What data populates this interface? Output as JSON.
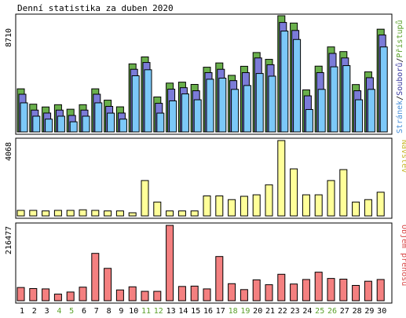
{
  "title": "Denní statistika za duben 2020",
  "panels": {
    "top": {
      "max_label": "8710",
      "legend": [
        {
          "text": "Stránek",
          "color": "#4a90d9"
        },
        {
          "text": "/",
          "color": "#000000"
        },
        {
          "text": "Souborů",
          "color": "#3a3aa0"
        },
        {
          "text": "/",
          "color": "#000000"
        },
        {
          "text": "Přístupů",
          "color": "#5aa02a"
        }
      ]
    },
    "middle": {
      "max_label": "4068",
      "legend_text": "Návštěv",
      "legend_color": "#c8b830"
    },
    "bottom": {
      "max_label": "216477",
      "legend_text": "Objem přenosu",
      "legend_color": "#d84848"
    }
  },
  "colors": {
    "hits": "#6ab04c",
    "files": "#7b7bd8",
    "pages": "#7cc8f8",
    "visits": "#ffff99",
    "kbytes": "#f48080",
    "weekend_label": "#5aa02a",
    "weekday_label": "#000000"
  },
  "chart_data": {
    "type": "bar",
    "categories": [
      "1",
      "2",
      "3",
      "4",
      "5",
      "6",
      "7",
      "8",
      "9",
      "10",
      "11",
      "12",
      "13",
      "14",
      "15",
      "16",
      "17",
      "18",
      "19",
      "20",
      "21",
      "22",
      "23",
      "24",
      "25",
      "26",
      "27",
      "28",
      "29",
      "30"
    ],
    "weekend_days": [
      "4",
      "5",
      "11",
      "12",
      "18",
      "19",
      "25",
      "26"
    ],
    "series": [
      {
        "name": "Přístupů",
        "values": [
          3230,
          2080,
          1870,
          2040,
          1700,
          2040,
          3230,
          2380,
          1880,
          5100,
          5620,
          2620,
          3660,
          3730,
          3560,
          4850,
          5170,
          4240,
          4920,
          5950,
          5440,
          8710,
          8160,
          3150,
          4930,
          6370,
          6020,
          3550,
          4500,
          7700
        ]
      },
      {
        "name": "Souborů",
        "values": [
          3060,
          1870,
          1650,
          1870,
          1470,
          1870,
          3060,
          2150,
          1650,
          4930,
          5440,
          2380,
          3440,
          3550,
          3320,
          4680,
          4930,
          4080,
          4680,
          5780,
          5270,
          8440,
          7840,
          2940,
          4680,
          6120,
          5780,
          3320,
          4300,
          7500
        ]
      },
      {
        "name": "Stránek",
        "values": [
          2650,
          1650,
          1430,
          1650,
          1230,
          1650,
          2650,
          1880,
          1430,
          4680,
          5130,
          1880,
          2800,
          3320,
          2880,
          4420,
          4500,
          3660,
          3950,
          4850,
          4650,
          8030,
          7400,
          2150,
          3660,
          5350,
          5440,
          2880,
          3660,
          6840
        ]
      },
      {
        "name": "Návštěv",
        "values": [
          300,
          300,
          270,
          300,
          300,
          330,
          300,
          270,
          270,
          170,
          1910,
          750,
          270,
          270,
          270,
          1080,
          1080,
          880,
          1060,
          1140,
          1680,
          4068,
          2540,
          1140,
          1140,
          1910,
          2500,
          750,
          880,
          1280
        ]
      },
      {
        "name": "Objem přenosu",
        "values": [
          38000,
          35000,
          34000,
          19000,
          25000,
          39000,
          136000,
          93000,
          31000,
          40000,
          27000,
          27000,
          216477,
          41000,
          42000,
          34000,
          127000,
          49000,
          32000,
          60000,
          46000,
          76000,
          48000,
          61000,
          82000,
          64000,
          62000,
          44000,
          56000,
          61000
        ]
      }
    ],
    "ylim_top": [
      0,
      8710
    ],
    "ylim_middle": [
      0,
      4068
    ],
    "ylim_bottom": [
      0,
      216477
    ],
    "grid": false
  }
}
